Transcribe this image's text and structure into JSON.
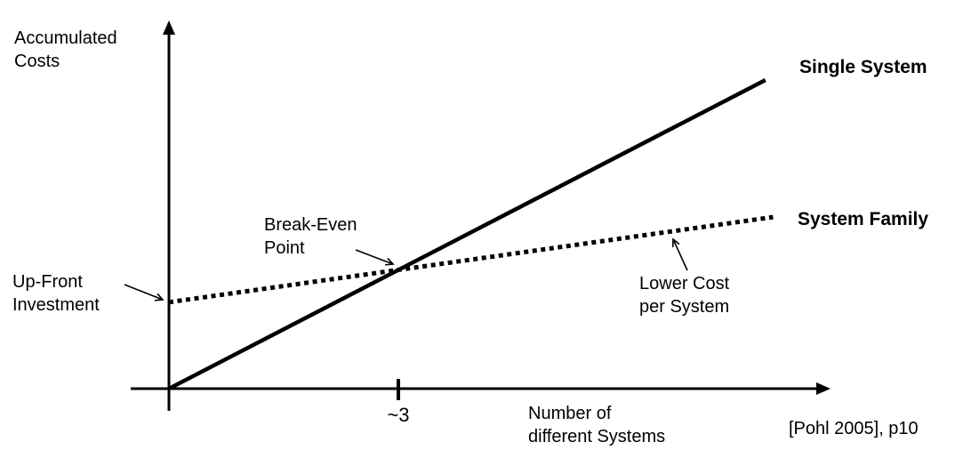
{
  "labels": {
    "y_axis": "Accumulated\nCosts",
    "x_axis": "Number of\ndifferent Systems",
    "up_front": "Up-Front\nInvestment",
    "break_even": "Break-Even\nPoint",
    "lower_cost": "Lower Cost\nper System",
    "single_system": "Single System",
    "system_family": "System Family",
    "citation": "[Pohl 2005], p10"
  },
  "colors": {
    "line": "#000000",
    "background": "#ffffff"
  },
  "chart_data": {
    "type": "line",
    "title": "",
    "xlabel": "Number of different Systems",
    "ylabel": "Accumulated Costs",
    "xlim": [
      0,
      8.8
    ],
    "ylim": [
      0,
      11.5
    ],
    "grid": false,
    "legend_position": "inline-right",
    "break_even_x": 3,
    "break_even_y": 3.85,
    "break_even_label": "~3",
    "series": [
      {
        "id": "single-system",
        "name": "Single System",
        "style": "solid",
        "points": [
          [
            0,
            0
          ],
          [
            7.8,
            10.0
          ]
        ]
      },
      {
        "id": "system-family",
        "name": "System Family",
        "style": "dotted",
        "points": [
          [
            0,
            2.8
          ],
          [
            7.9,
            5.56
          ]
        ]
      }
    ],
    "annotations": [
      {
        "text": "Up-Front Investment",
        "target": "system-family y-intercept"
      },
      {
        "text": "Break-Even Point",
        "target": "intersection at x ~3"
      },
      {
        "text": "Lower Cost per System",
        "target": "system-family slope"
      }
    ],
    "source": "[Pohl 2005], p10"
  }
}
